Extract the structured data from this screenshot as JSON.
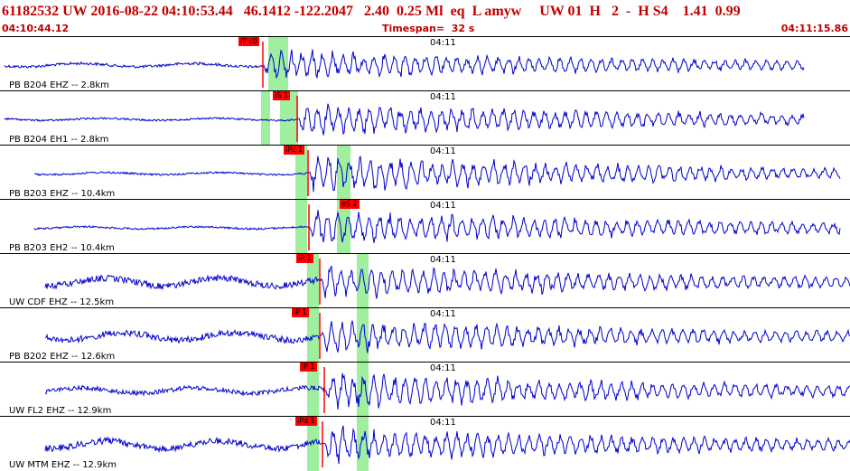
{
  "header": {
    "title": "61182532 UW 2016-08-22 04:10:53.44   46.1412 -122.2047   2.40  0.25 Ml  eq  L amyw     UW 01  H   2  -  H S4    1.41  0.99",
    "start_time": "04:10:44.12",
    "timespan": "Timespan=  32 s",
    "end_time": "04:11:15.86"
  },
  "colors": {
    "header_text": "#c00000",
    "trace": "#0000cc",
    "window": "#9fef9f",
    "pick": "#ff0000"
  },
  "traces": [
    {
      "label": "PB B204 EHZ -- 2.8km",
      "minute": "04:11",
      "pick": "iP c0",
      "amp": 13,
      "noise": 3
    },
    {
      "label": "PB B204 EH1 -- 2.8km",
      "minute": "04:11",
      "pick": "iS 1",
      "amp": 14,
      "noise": 2
    },
    {
      "label": "PB B203 EHZ -- 10.4km",
      "minute": "04:11",
      "pick": "iPc 1",
      "amp": 16,
      "noise": 2
    },
    {
      "label": "PB B203 EH2 -- 10.4km",
      "minute": "04:11",
      "pick": "eS 2",
      "amp": 15,
      "noise": 2
    },
    {
      "label": "UW CDF EHZ -- 12.5km",
      "minute": "04:11",
      "pick": "iP 1",
      "amp": 15,
      "noise": 7
    },
    {
      "label": "PB B202 EHZ -- 12.6km",
      "minute": "04:11",
      "pick": "iP 1",
      "amp": 14,
      "noise": 7
    },
    {
      "label": "UW FL2 EHZ -- 12.9km",
      "minute": "04:11",
      "pick": "iP 1",
      "amp": 16,
      "noise": 5
    },
    {
      "label": "UW MTM EHZ -- 12.9km",
      "minute": "04:11",
      "pick": "iPd 1",
      "amp": 15,
      "noise": 7
    }
  ]
}
